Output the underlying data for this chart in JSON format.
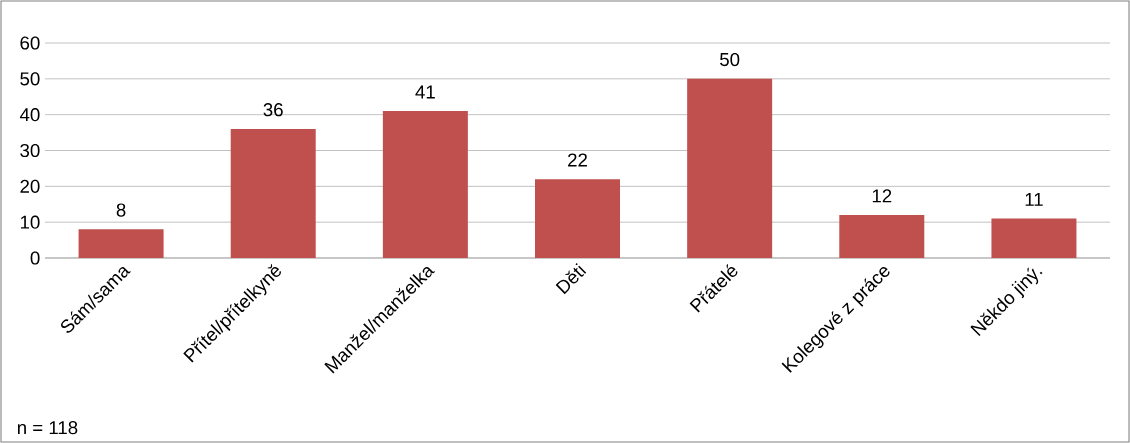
{
  "chart_data": {
    "type": "bar",
    "categories": [
      "Sám/sama",
      "Přítel/přítelkyně",
      "Manžel/manželka",
      "Děti",
      "Přátelé",
      "Kolegové z práce",
      "Někdo jiný."
    ],
    "values": [
      8,
      36,
      41,
      22,
      50,
      12,
      11
    ],
    "color": "#c0504d",
    "ylim": [
      0,
      60
    ],
    "yticks": [
      0,
      10,
      20,
      30,
      40,
      50,
      60
    ],
    "grid": "y",
    "data_labels": true,
    "annotations": [
      "n = 118"
    ]
  }
}
